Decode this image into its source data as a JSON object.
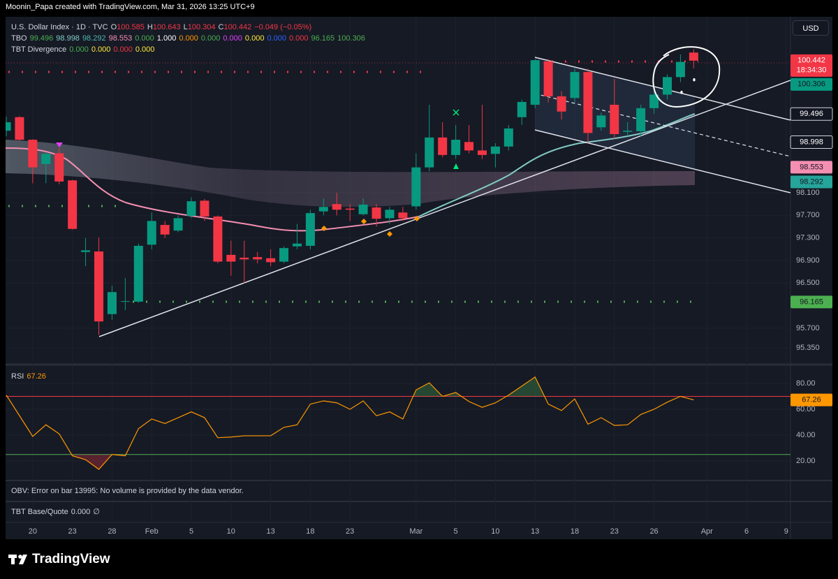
{
  "page": {
    "attribution": "Moonin_Papa created with TradingView.com, Mar 31, 2026 13:25 UTC+9",
    "currency": "USD",
    "brand": "TradingView"
  },
  "chart_data": [
    {
      "type": "candlestick",
      "title": "U.S. Dollar Index · 1D · TVC",
      "ohlc_labels": [
        "O",
        "H",
        "L",
        "C"
      ],
      "change": "−0.049 (−0.05%)",
      "countdown": "18:34:30",
      "up_color": "#089981",
      "down_color": "#f23645",
      "categories": [
        null,
        null,
        "20",
        null,
        null,
        "23",
        null,
        null,
        "28",
        null,
        null,
        "Feb",
        null,
        null,
        "5",
        null,
        null,
        "10",
        null,
        null,
        "13",
        null,
        null,
        "18",
        null,
        null,
        "23",
        null,
        null,
        null,
        null,
        "Mar",
        null,
        null,
        "5",
        null,
        null,
        "10",
        null,
        null,
        "13",
        null,
        null,
        "18",
        null,
        null,
        "23",
        null,
        null,
        "26",
        null,
        null,
        null,
        "Apr",
        null,
        null,
        "6",
        null,
        null,
        "9"
      ],
      "open": [
        99.2,
        99.44,
        99.04,
        98.61,
        98.8,
        98.32,
        97.05,
        97.06,
        95.95,
        96.17,
        96.17,
        97.18,
        97.53,
        97.43,
        97.69,
        97.96,
        97.68,
        97.0,
        96.95,
        96.96,
        96.94,
        96.88,
        97.15,
        97.16,
        97.77,
        97.9,
        97.82,
        97.72,
        97.84,
        97.65,
        97.75,
        97.86,
        98.55,
        99.08,
        98.77,
        99.0,
        98.85,
        98.79,
        98.92,
        99.44,
        99.66,
        100.43,
        99.81,
        99.78,
        100.24,
        99.26,
        99.66,
        99.18,
        99.19,
        99.6,
        99.84,
        100.15,
        100.585,
        null,
        null,
        null,
        null,
        null,
        null,
        null
      ],
      "high": [
        99.45,
        99.46,
        99.05,
        98.82,
        98.9,
        98.33,
        97.3,
        97.31,
        96.45,
        96.59,
        97.2,
        97.75,
        97.6,
        97.7,
        98.02,
        97.99,
        97.7,
        97.25,
        97.25,
        97.05,
        97.1,
        97.15,
        97.55,
        97.8,
        98.0,
        98.1,
        97.9,
        98.0,
        97.9,
        97.85,
        97.85,
        98.8,
        99.66,
        99.35,
        99.3,
        99.3,
        99.66,
        98.98,
        99.3,
        99.75,
        100.47,
        100.47,
        99.9,
        100.3,
        100.3,
        99.52,
        100.12,
        99.35,
        99.66,
        99.9,
        100.2,
        100.55,
        100.643,
        null,
        null,
        null,
        null,
        null,
        null,
        null
      ],
      "low": [
        99.1,
        99.02,
        98.27,
        98.27,
        98.25,
        97.45,
        96.8,
        95.58,
        95.85,
        96.02,
        96.15,
        97.1,
        97.3,
        97.4,
        97.65,
        97.6,
        96.85,
        96.63,
        96.5,
        96.85,
        96.8,
        96.85,
        97.1,
        97.1,
        97.7,
        97.7,
        97.6,
        97.7,
        97.5,
        97.55,
        97.6,
        97.8,
        98.48,
        98.73,
        98.7,
        98.8,
        98.7,
        98.55,
        98.85,
        99.3,
        99.6,
        99.7,
        99.4,
        99.7,
        98.98,
        99.2,
        99.05,
        99.1,
        99.1,
        99.5,
        99.75,
        100.06,
        100.304,
        null,
        null,
        null,
        null,
        null,
        null,
        null
      ],
      "close": [
        99.35,
        99.04,
        98.55,
        98.79,
        98.3,
        97.46,
        97.08,
        95.82,
        96.34,
        96.18,
        97.16,
        97.6,
        97.36,
        97.65,
        97.95,
        97.68,
        96.88,
        96.88,
        96.92,
        96.92,
        96.87,
        97.12,
        97.2,
        97.74,
        97.85,
        97.8,
        97.8,
        97.89,
        97.64,
        97.8,
        97.65,
        98.55,
        99.08,
        98.77,
        99.04,
        98.85,
        98.77,
        98.92,
        99.24,
        99.71,
        100.45,
        99.81,
        99.54,
        100.24,
        99.16,
        99.47,
        99.14,
        99.2,
        99.6,
        99.84,
        100.15,
        100.42,
        100.442,
        null,
        null,
        null,
        null,
        null,
        null,
        null
      ],
      "ylim": [
        95.08,
        101.17
      ],
      "yticks": [
        {
          "value": 95.35,
          "label": "95.350"
        },
        {
          "value": 95.7,
          "label": "95.700"
        },
        {
          "value": 96.5,
          "label": "96.500"
        },
        {
          "value": 96.9,
          "label": "96.900"
        },
        {
          "value": 97.3,
          "label": "97.300"
        },
        {
          "value": 97.7,
          "label": "97.700"
        },
        {
          "value": 98.1,
          "label": "98.100"
        }
      ],
      "grid": true,
      "price_tags": [
        {
          "value": 100.306,
          "color": "#089981"
        },
        {
          "value": 99.496,
          "color": "#131722"
        },
        {
          "value": 98.998,
          "color": "#131722"
        },
        {
          "value": 98.553,
          "color": "#f48fb1"
        },
        {
          "value": 98.292,
          "color": "#26a69a"
        },
        {
          "value": 96.165,
          "color": "#4caf50"
        }
      ],
      "indicators": [
        {
          "name": "TBO",
          "values": [
            {
              "text": "99.496",
              "color": "#4caf50"
            },
            {
              "text": "98.998",
              "color": "#80cbc4"
            },
            {
              "text": "98.292",
              "color": "#4db6ac"
            },
            {
              "text": "98.553",
              "color": "#f48fb1"
            },
            {
              "text": "0.000",
              "color": "#4caf50"
            },
            {
              "text": "1.000",
              "color": "#ffffff"
            },
            {
              "text": "0.000",
              "color": "#ff9800"
            },
            {
              "text": "0.000",
              "color": "#4caf50"
            },
            {
              "text": "0.000",
              "color": "#e040fb"
            },
            {
              "text": "0.000",
              "color": "#ffeb3b"
            },
            {
              "text": "0.000",
              "color": "#2962ff"
            },
            {
              "text": "0.000",
              "color": "#f23645"
            },
            {
              "text": "96.165",
              "color": "#4caf50"
            },
            {
              "text": "100.306",
              "color": "#4caf50"
            }
          ]
        },
        {
          "name": "TBT Divergence",
          "values": [
            {
              "text": "0.000",
              "color": "#4caf50"
            },
            {
              "text": "0.000",
              "color": "#ffeb3b"
            },
            {
              "text": "0.000",
              "color": "#f23645"
            },
            {
              "text": "0.000",
              "color": "#ffeb3b"
            }
          ]
        }
      ]
    },
    {
      "type": "line",
      "name": "RSI",
      "color": "#ff9800",
      "values": [
        71,
        55,
        39,
        48,
        41,
        24,
        21,
        13.5,
        25,
        24,
        45,
        52.5,
        49,
        53.5,
        58,
        53.5,
        38,
        38.5,
        39.5,
        39.5,
        39.5,
        46,
        48,
        64,
        66.5,
        65,
        60,
        66.5,
        55,
        58,
        52.5,
        75,
        80.5,
        70,
        73,
        66,
        61.5,
        65,
        71,
        78,
        85,
        64,
        59,
        68,
        48.5,
        53.5,
        47.5,
        48,
        56,
        60,
        65.5,
        70,
        67.26,
        null,
        null,
        null,
        null,
        null,
        null,
        null
      ],
      "ylim": [
        4.86,
        91.35
      ],
      "yticks": [
        {
          "value": 20,
          "label": "20.00"
        },
        {
          "value": 40,
          "label": "40.00"
        },
        {
          "value": 60,
          "label": "60.00"
        },
        {
          "value": 80,
          "label": "80.00"
        }
      ],
      "levels": [
        {
          "value": 70,
          "color": "#f23645"
        },
        {
          "value": 25,
          "color": "#4caf50"
        }
      ]
    }
  ],
  "panes": {
    "obv": "OBV: Error on bar 13995: No volume is provided by the data vendor.",
    "base_quote_name": "TBT Base/Quote",
    "base_quote_value": "0.000",
    "base_quote_symbol": "∅"
  }
}
